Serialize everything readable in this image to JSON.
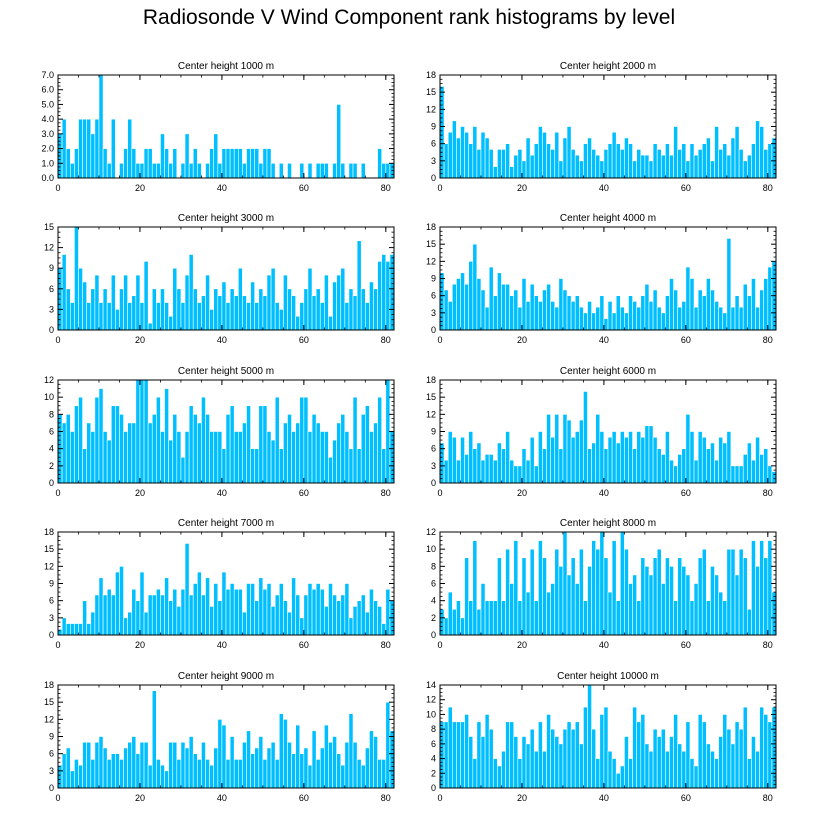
{
  "title": "Radiosonde V Wind Component rank histograms by level",
  "colors": {
    "bar": "#00bfff",
    "bar_edge": "#ffffff",
    "axis": "#000000"
  },
  "chart_data": [
    {
      "type": "bar",
      "title": "Center height 1000 m",
      "xlim": [
        0,
        82
      ],
      "ylim": [
        0,
        7
      ],
      "xticks": [
        0,
        20,
        40,
        60,
        80
      ],
      "yticks": [
        0,
        1,
        2,
        3,
        4,
        5,
        6,
        7
      ],
      "ytick_labels": [
        "0.0",
        "1.0",
        "2.0",
        "3.0",
        "4.0",
        "5.0",
        "6.0",
        "7.0"
      ],
      "values": [
        3,
        4,
        2,
        1,
        2,
        4,
        4,
        4,
        3,
        4,
        7,
        2,
        1,
        4,
        0,
        1,
        2,
        4,
        2,
        1,
        1,
        2,
        2,
        1,
        1,
        3,
        2,
        1,
        2,
        0,
        1,
        3,
        1,
        2,
        1,
        0,
        1,
        2,
        3,
        1,
        2,
        2,
        2,
        2,
        2,
        1,
        2,
        2,
        2,
        1,
        2,
        2,
        1,
        0,
        1,
        0,
        1,
        0,
        0,
        1,
        0,
        1,
        0,
        1,
        1,
        1,
        0,
        1,
        5,
        1,
        0,
        1,
        1,
        0,
        1,
        0,
        0,
        0,
        2,
        1,
        1,
        1
      ]
    },
    {
      "type": "bar",
      "title": "Center height 2000 m",
      "xlim": [
        0,
        82
      ],
      "ylim": [
        0,
        18
      ],
      "xticks": [
        0,
        20,
        40,
        60,
        80
      ],
      "yticks": [
        0,
        3,
        6,
        9,
        12,
        15,
        18
      ],
      "values": [
        16,
        6,
        8,
        10,
        7,
        9,
        8,
        6,
        9,
        5,
        8,
        7,
        5,
        2,
        5,
        5,
        6,
        2,
        4,
        5,
        3,
        7,
        4,
        6,
        9,
        8,
        6,
        5,
        8,
        3,
        7,
        9,
        5,
        4,
        3,
        6,
        7,
        5,
        4,
        3,
        5,
        6,
        8,
        6,
        5,
        7,
        6,
        3,
        5,
        4,
        4,
        3,
        6,
        5,
        4,
        6,
        4,
        9,
        5,
        6,
        3,
        6,
        4,
        5,
        6,
        7,
        3,
        9,
        5,
        6,
        4,
        7,
        9,
        5,
        3,
        4,
        6,
        10,
        9,
        5,
        6,
        7
      ]
    },
    {
      "type": "bar",
      "title": "Center height 3000 m",
      "xlim": [
        0,
        82
      ],
      "ylim": [
        0,
        15
      ],
      "xticks": [
        0,
        20,
        40,
        60,
        80
      ],
      "yticks": [
        0,
        3,
        6,
        9,
        12,
        15
      ],
      "values": [
        9,
        11,
        6,
        4,
        15,
        9,
        7,
        4,
        6,
        8,
        4,
        6,
        4,
        8,
        3,
        6,
        8,
        4,
        5,
        8,
        4,
        10,
        1,
        6,
        4,
        6,
        4,
        2,
        9,
        6,
        4,
        8,
        11,
        6,
        4,
        5,
        8,
        3,
        6,
        5,
        7,
        4,
        6,
        5,
        9,
        5,
        4,
        7,
        4,
        6,
        5,
        8,
        9,
        4,
        3,
        8,
        6,
        5,
        2,
        4,
        6,
        9,
        5,
        6,
        4,
        8,
        2,
        7,
        8,
        9,
        4,
        6,
        5,
        13,
        6,
        4,
        7,
        6,
        10,
        11,
        10,
        11
      ]
    },
    {
      "type": "bar",
      "title": "Center height 4000 m",
      "xlim": [
        0,
        82
      ],
      "ylim": [
        0,
        18
      ],
      "xticks": [
        0,
        20,
        40,
        60,
        80
      ],
      "yticks": [
        0,
        3,
        6,
        9,
        12,
        15,
        18
      ],
      "values": [
        10,
        7,
        5,
        8,
        9,
        10,
        8,
        12,
        15,
        9,
        7,
        4,
        11,
        6,
        10,
        8,
        8,
        6,
        7,
        4,
        9,
        5,
        8,
        6,
        5,
        7,
        8,
        5,
        4,
        9,
        7,
        6,
        5,
        6,
        4,
        3,
        5,
        3,
        4,
        6,
        2,
        5,
        3,
        6,
        4,
        3,
        6,
        5,
        4,
        6,
        8,
        5,
        7,
        4,
        3,
        6,
        9,
        7,
        4,
        5,
        11,
        9,
        4,
        7,
        6,
        9,
        7,
        5,
        4,
        3,
        16,
        4,
        6,
        4,
        8,
        6,
        9,
        4,
        7,
        9,
        11,
        12
      ]
    },
    {
      "type": "bar",
      "title": "Center height 5000 m",
      "xlim": [
        0,
        82
      ],
      "ylim": [
        0,
        12
      ],
      "xticks": [
        0,
        20,
        40,
        60,
        80
      ],
      "yticks": [
        0,
        2,
        4,
        6,
        8,
        10,
        12
      ],
      "values": [
        8,
        7,
        8,
        6,
        9,
        10,
        4,
        7,
        6,
        10,
        11,
        6,
        5,
        9,
        9,
        8,
        6,
        7,
        7,
        12,
        12,
        12,
        7,
        8,
        10,
        6,
        11,
        5,
        8,
        6,
        3,
        6,
        9,
        8,
        7,
        10,
        8,
        6,
        6,
        6,
        4,
        8,
        9,
        6,
        6,
        7,
        9,
        4,
        4,
        9,
        9,
        6,
        5,
        10,
        4,
        7,
        8,
        6,
        7,
        10,
        10,
        6,
        8,
        7,
        6,
        6,
        3,
        5,
        7,
        8,
        6,
        4,
        10,
        4,
        8,
        9,
        6,
        7,
        10,
        4,
        12,
        6
      ]
    },
    {
      "type": "bar",
      "title": "Center height 6000 m",
      "xlim": [
        0,
        82
      ],
      "ylim": [
        0,
        18
      ],
      "xticks": [
        0,
        20,
        40,
        60,
        80
      ],
      "yticks": [
        0,
        3,
        6,
        9,
        12,
        15,
        18
      ],
      "values": [
        7,
        4,
        9,
        8,
        4,
        8,
        5,
        9,
        6,
        7,
        4,
        5,
        5,
        4,
        7,
        6,
        9,
        4,
        3,
        3,
        6,
        4,
        8,
        3,
        9,
        6,
        12,
        8,
        12,
        6,
        12,
        11,
        8,
        9,
        11,
        16,
        6,
        7,
        12,
        9,
        6,
        8,
        9,
        7,
        9,
        8,
        9,
        6,
        9,
        8,
        10,
        10,
        8,
        6,
        5,
        9,
        4,
        3,
        5,
        6,
        12,
        9,
        4,
        9,
        8,
        6,
        7,
        4,
        8,
        7,
        9,
        3,
        3,
        3,
        5,
        7,
        4,
        8,
        5,
        6,
        3,
        2
      ]
    },
    {
      "type": "bar",
      "title": "Center height 7000 m",
      "xlim": [
        0,
        82
      ],
      "ylim": [
        0,
        18
      ],
      "xticks": [
        0,
        20,
        40,
        60,
        80
      ],
      "yticks": [
        0,
        3,
        6,
        9,
        12,
        15,
        18
      ],
      "values": [
        1,
        3,
        2,
        2,
        2,
        2,
        6,
        2,
        4,
        7,
        10,
        7,
        8,
        7,
        11,
        12,
        3,
        4,
        8,
        6,
        11,
        4,
        7,
        7,
        8,
        7,
        10,
        6,
        8,
        5,
        8,
        16,
        7,
        9,
        11,
        7,
        10,
        5,
        9,
        6,
        11,
        8,
        9,
        8,
        8,
        4,
        9,
        9,
        6,
        10,
        8,
        9,
        5,
        7,
        9,
        6,
        4,
        10,
        7,
        3,
        7,
        9,
        8,
        9,
        8,
        5,
        9,
        7,
        6,
        7,
        9,
        3,
        5,
        6,
        7,
        4,
        8,
        6,
        5,
        2,
        8,
        6
      ]
    },
    {
      "type": "bar",
      "title": "Center height 8000 m",
      "xlim": [
        0,
        82
      ],
      "ylim": [
        0,
        12
      ],
      "xticks": [
        0,
        20,
        40,
        60,
        80
      ],
      "yticks": [
        0,
        2,
        4,
        6,
        8,
        10,
        12
      ],
      "values": [
        3,
        2,
        5,
        3,
        4,
        2,
        9,
        4,
        11,
        3,
        6,
        4,
        4,
        4,
        9,
        4,
        10,
        6,
        11,
        4,
        9,
        5,
        10,
        4,
        11,
        9,
        5,
        6,
        10,
        8,
        12,
        7,
        9,
        6,
        10,
        4,
        8,
        11,
        10,
        12,
        9,
        5,
        11,
        4,
        12,
        10,
        6,
        7,
        4,
        9,
        8,
        7,
        9,
        10,
        6,
        9,
        8,
        4,
        9,
        8,
        7,
        4,
        6,
        9,
        10,
        4,
        8,
        7,
        5,
        4,
        10,
        10,
        7,
        10,
        9,
        3,
        11,
        8,
        11,
        9,
        11,
        5
      ]
    },
    {
      "type": "bar",
      "title": "Center height 9000 m",
      "xlim": [
        0,
        82
      ],
      "ylim": [
        0,
        18
      ],
      "xticks": [
        0,
        20,
        40,
        60,
        80
      ],
      "yticks": [
        0,
        3,
        6,
        9,
        12,
        15,
        18
      ],
      "values": [
        4,
        6,
        7,
        3,
        5,
        4,
        8,
        8,
        5,
        8,
        9,
        7,
        5,
        6,
        6,
        5,
        7,
        8,
        9,
        6,
        8,
        8,
        4,
        17,
        5,
        4,
        3,
        8,
        8,
        5,
        8,
        7,
        9,
        6,
        5,
        8,
        5,
        4,
        7,
        12,
        11,
        5,
        9,
        5,
        5,
        8,
        10,
        6,
        7,
        9,
        5,
        7,
        8,
        5,
        13,
        12,
        8,
        6,
        11,
        6,
        7,
        4,
        10,
        5,
        7,
        11,
        8,
        9,
        6,
        4,
        8,
        13,
        8,
        5,
        4,
        7,
        10,
        9,
        5,
        5,
        15,
        10
      ]
    },
    {
      "type": "bar",
      "title": "Center height 10000 m",
      "xlim": [
        0,
        82
      ],
      "ylim": [
        0,
        14
      ],
      "xticks": [
        0,
        20,
        40,
        60,
        80
      ],
      "yticks": [
        0,
        2,
        4,
        6,
        8,
        10,
        12,
        14
      ],
      "values": [
        9,
        9,
        11,
        9,
        9,
        9,
        10,
        7,
        4,
        9,
        7,
        10,
        8,
        4,
        3,
        5,
        9,
        9,
        7,
        4,
        7,
        6,
        8,
        5,
        9,
        5,
        10,
        8,
        7,
        6,
        8,
        9,
        8,
        9,
        6,
        11,
        14,
        8,
        4,
        10,
        11,
        5,
        4,
        2,
        3,
        7,
        4,
        11,
        9,
        10,
        6,
        5,
        8,
        7,
        8,
        5,
        7,
        10,
        6,
        5,
        9,
        4,
        3,
        10,
        9,
        6,
        5,
        4,
        7,
        10,
        8,
        6,
        9,
        8,
        11,
        4,
        7,
        5,
        11,
        10,
        9,
        11
      ]
    }
  ]
}
